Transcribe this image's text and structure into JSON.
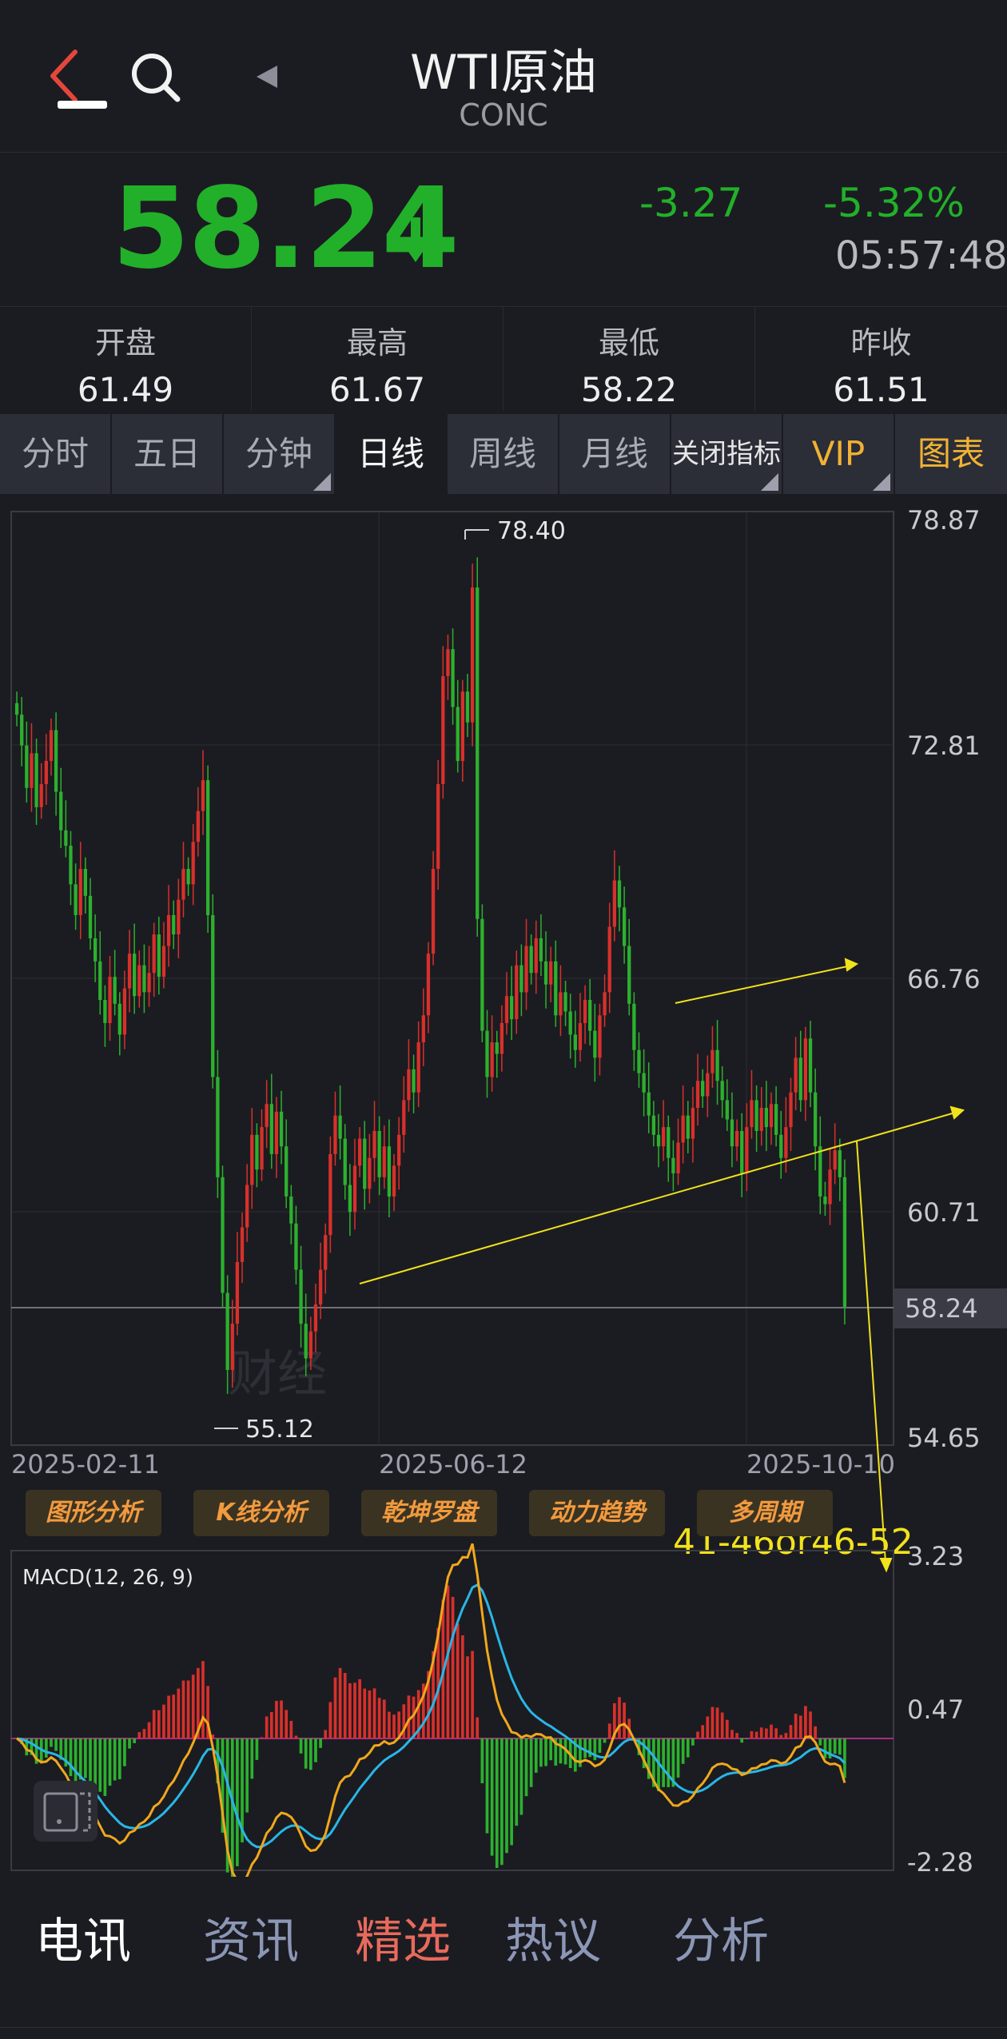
{
  "header": {
    "title": "WTI原油",
    "subtitle": "CONC"
  },
  "quote": {
    "price": "58.24",
    "change": "-3.27",
    "change_pct": "-5.32%",
    "time": "05:57:48",
    "direction": "down",
    "color_down": "#22b02a"
  },
  "ohlc": [
    {
      "label": "开盘",
      "value": "61.49"
    },
    {
      "label": "最高",
      "value": "61.67"
    },
    {
      "label": "最低",
      "value": "58.22"
    },
    {
      "label": "昨收",
      "value": "61.51"
    }
  ],
  "tabs": [
    {
      "label": "分时",
      "active": false
    },
    {
      "label": "五日",
      "active": false
    },
    {
      "label": "分钟",
      "active": false,
      "dropdown": true
    },
    {
      "label": "日线",
      "active": true
    },
    {
      "label": "周线",
      "active": false
    },
    {
      "label": "月线",
      "active": false
    },
    {
      "label": "关闭指标",
      "active": false,
      "dropdown": true
    },
    {
      "label": "VIP",
      "active": false,
      "dropdown": true
    },
    {
      "label": "图表",
      "active": false
    }
  ],
  "chart_data": [
    {
      "type": "candlestick",
      "y_ticks": [
        "78.87",
        "72.81",
        "66.76",
        "60.71",
        "54.65"
      ],
      "ylim": [
        54.65,
        78.87
      ],
      "x_ticks": [
        "2025-02-11",
        "2025-06-12",
        "2025-10-10"
      ],
      "last_price_label": "58.24",
      "high_marker": "78.40",
      "low_marker": "55.12",
      "annotation_text": "41-46or46-52",
      "watermark": "财经",
      "up_color": "#d8302b",
      "down_color": "#2cb12e",
      "annotation_color": "#f2e21b",
      "close_series": [
        73.6,
        72.8,
        71.7,
        72.6,
        71.2,
        71.8,
        72.4,
        73.2,
        71.6,
        70.6,
        70.2,
        69.2,
        68.4,
        69.6,
        68.9,
        67.8,
        67.2,
        66.2,
        65.6,
        66.8,
        66.1,
        65.3,
        66.5,
        67.4,
        66.3,
        67.1,
        66.4,
        66.9,
        67.9,
        66.8,
        67.6,
        68.4,
        67.9,
        68.8,
        69.6,
        69.2,
        70.3,
        71.1,
        71.9,
        68.4,
        64.2,
        61.6,
        58.6,
        56.6,
        57.8,
        59.4,
        60.3,
        61.4,
        62.7,
        61.8,
        62.9,
        63.5,
        62.2,
        63.3,
        62.4,
        61.1,
        60.4,
        59.2,
        57.8,
        56.9,
        57.6,
        58.3,
        59.2,
        60.1,
        62.2,
        63.2,
        62.6,
        61.4,
        60.7,
        61.9,
        62.6,
        61.3,
        62.1,
        62.8,
        61.6,
        62.4,
        61.1,
        61.9,
        62.7,
        63.6,
        64.4,
        63.8,
        65.1,
        65.8,
        67.4,
        69.6,
        71.8,
        74.6,
        75.3,
        73.8,
        72.4,
        74.2,
        73.4,
        76.9,
        68.3,
        65.4,
        64.2,
        65.1,
        64.8,
        65.6,
        66.3,
        65.7,
        67.1,
        66.4,
        67.6,
        66.9,
        67.8,
        67.2,
        66.6,
        67.2,
        65.8,
        66.4,
        65.9,
        65.3,
        64.9,
        65.6,
        66.2,
        65.4,
        64.7,
        65.8,
        66.4,
        68.1,
        69.3,
        68.6,
        67.6,
        66.1,
        64.9,
        64.3,
        63.8,
        63.2,
        62.7,
        62.4,
        62.9,
        62.1,
        61.7,
        62.5,
        63.2,
        62.6,
        63.4,
        64.1,
        63.7,
        64.3,
        64.9,
        64.1,
        63.6,
        63.1,
        62.4,
        62.8,
        61.7,
        62.9,
        63.6,
        62.8,
        63.4,
        62.9,
        63.5,
        62.7,
        62.1,
        62.9,
        63.8,
        64.7,
        63.6,
        65.2,
        63.8,
        62.4,
        61.1,
        60.9,
        61.8,
        62.3,
        61.6,
        58.24
      ]
    },
    {
      "type": "macd",
      "title": "MACD(12, 26, 9)",
      "y_ticks": [
        "3.23",
        "0.47",
        "-2.28"
      ],
      "ylim": [
        -2.28,
        3.23
      ],
      "dif_color": "#f0a81c",
      "dea_color": "#29b6e6"
    }
  ],
  "toolbar": [
    {
      "label": "图形分析"
    },
    {
      "label": "K线分析"
    },
    {
      "label": "乾坤罗盘"
    },
    {
      "label": "动力趋势"
    },
    {
      "label": "多周期"
    }
  ],
  "bottom_nav": [
    {
      "label": "电讯",
      "active": true
    },
    {
      "label": "资讯",
      "active": false
    },
    {
      "label": "精选",
      "active": false,
      "accent": true
    },
    {
      "label": "热议",
      "active": false
    },
    {
      "label": "分析",
      "active": false
    }
  ]
}
